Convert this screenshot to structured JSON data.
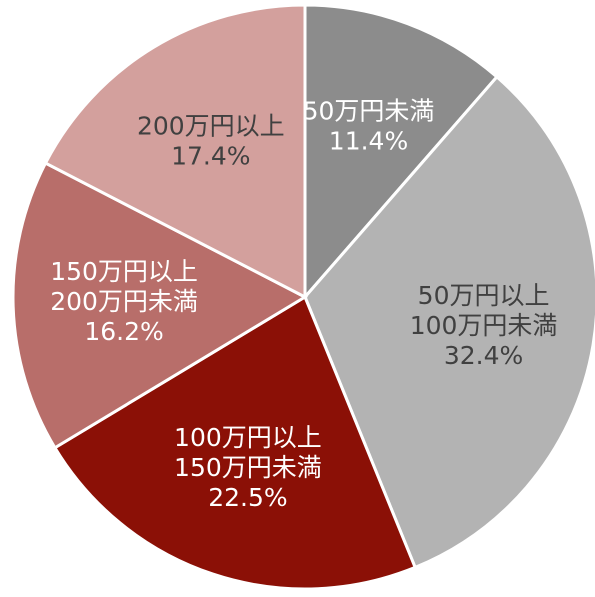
{
  "chart_data": {
    "type": "pie",
    "categories": [
      [
        "50万円未満"
      ],
      [
        "50万円以上",
        "100万円未満"
      ],
      [
        "100万円以上",
        "150万円未満"
      ],
      [
        "150万円以上",
        "200万円未満"
      ],
      [
        "200万円以上"
      ]
    ],
    "values": [
      11.4,
      32.4,
      22.5,
      16.2,
      17.4
    ],
    "value_labels": [
      "11.4%",
      "32.4%",
      "22.5%",
      "16.2%",
      "17.4%"
    ],
    "colors": [
      "#8c8c8c",
      "#b3b3b3",
      "#8b1006",
      "#b86e6a",
      "#d3a09d"
    ],
    "label_colors": [
      "#ffffff",
      "#404040",
      "#ffffff",
      "#ffffff",
      "#404040"
    ]
  }
}
